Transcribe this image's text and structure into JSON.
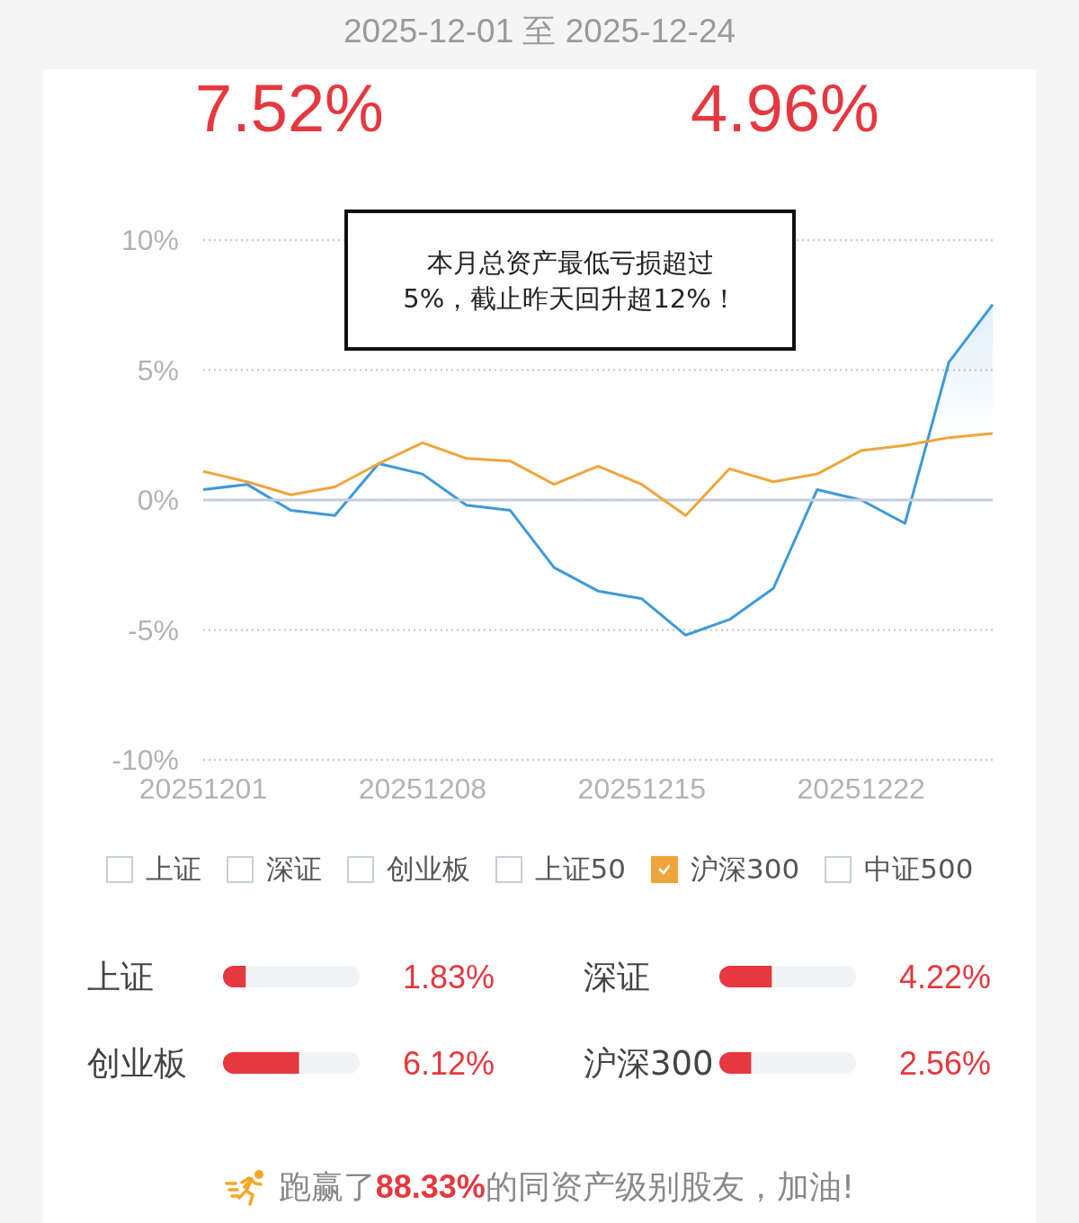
{
  "chart_data": [
    {
      "type": "line",
      "title": "2025-12-01 至 2025-12-24",
      "categories": [
        "20251201",
        null,
        null,
        null,
        null,
        "20251208",
        null,
        null,
        null,
        null,
        "20251215",
        null,
        null,
        null,
        null,
        "20251222",
        null,
        null,
        null
      ],
      "series": [
        {
          "type": "area",
          "color": "#3d9ad8",
          "values": [
            0.4,
            0.6,
            -0.4,
            -0.6,
            1.4,
            1.0,
            -0.2,
            -0.4,
            -2.6,
            -3.5,
            -3.8,
            -5.2,
            -4.6,
            -3.4,
            0.4,
            0.0,
            -0.9,
            5.3,
            7.52
          ]
        },
        {
          "name": "上证",
          "color": "#c5d0db",
          "values": [
            null,
            null,
            null,
            null,
            null,
            null,
            null,
            null,
            null,
            null,
            null,
            null,
            null,
            null,
            null,
            null,
            null,
            null,
            null
          ]
        },
        {
          "name": "深证",
          "color": "#c5d0db",
          "values": [
            null,
            null,
            null,
            null,
            null,
            null,
            null,
            null,
            null,
            null,
            null,
            null,
            null,
            null,
            null,
            null,
            null,
            null,
            null
          ]
        },
        {
          "name": "创业板",
          "color": "#c5d0db",
          "values": [
            null,
            null,
            null,
            null,
            null,
            null,
            null,
            null,
            null,
            null,
            null,
            null,
            null,
            null,
            null,
            null,
            null,
            null,
            null
          ]
        },
        {
          "name": "上证50",
          "color": "#c5d0db",
          "values": [
            null,
            null,
            null,
            null,
            null,
            null,
            null,
            null,
            null,
            null,
            null,
            null,
            null,
            null,
            null,
            null,
            null,
            null,
            null
          ]
        },
        {
          "name": "沪深300",
          "color": "#f0a53c",
          "values": [
            1.1,
            0.7,
            0.2,
            0.5,
            1.4,
            2.2,
            1.6,
            1.5,
            0.6,
            1.3,
            0.6,
            -0.6,
            1.2,
            0.7,
            1.0,
            1.9,
            2.1,
            2.4,
            2.56
          ]
        },
        {
          "name": "中证500",
          "color": "#c5d0db",
          "values": [
            null,
            null,
            null,
            null,
            null,
            null,
            null,
            null,
            null,
            null,
            null,
            null,
            null,
            null,
            null,
            null,
            null,
            null,
            null
          ]
        }
      ],
      "ylim": [
        -10,
        10
      ],
      "yticks": [
        {
          "value": -10,
          "label": "-10%"
        },
        {
          "value": -5,
          "label": "-5%"
        },
        {
          "value": 0,
          "label": "0%"
        },
        {
          "value": 5,
          "label": "5%"
        },
        {
          "value": 10,
          "label": "10%"
        }
      ],
      "grid": "y",
      "legend": "bottom",
      "ref_lines": [
        {
          "axis": "y",
          "value": 0,
          "color": "#c5cfdb"
        }
      ],
      "annotations": [
        "7.52%",
        "4.96%",
        "本月总资产最低亏损超过\n5%，截止昨天回升超12%！",
        "跑赢了88.33%的同资产级别股友，加油!"
      ]
    },
    {
      "type": "bar",
      "orientation": "horizontal",
      "categories": [
        "上证",
        "创业板"
      ],
      "values": [
        1.83,
        6.12
      ],
      "value_labels": [
        "1.83%",
        "6.12%"
      ],
      "color": "#e5383f",
      "xlim": [
        0,
        11
      ],
      "tick_labels": "y"
    },
    {
      "type": "bar",
      "orientation": "horizontal",
      "categories": [
        "深证",
        "沪深300"
      ],
      "values": [
        4.22,
        2.56
      ],
      "value_labels": [
        "4.22%",
        "2.56%"
      ],
      "color": "#e5383f",
      "xlim": [
        0,
        11
      ],
      "tick_labels": "y"
    }
  ]
}
